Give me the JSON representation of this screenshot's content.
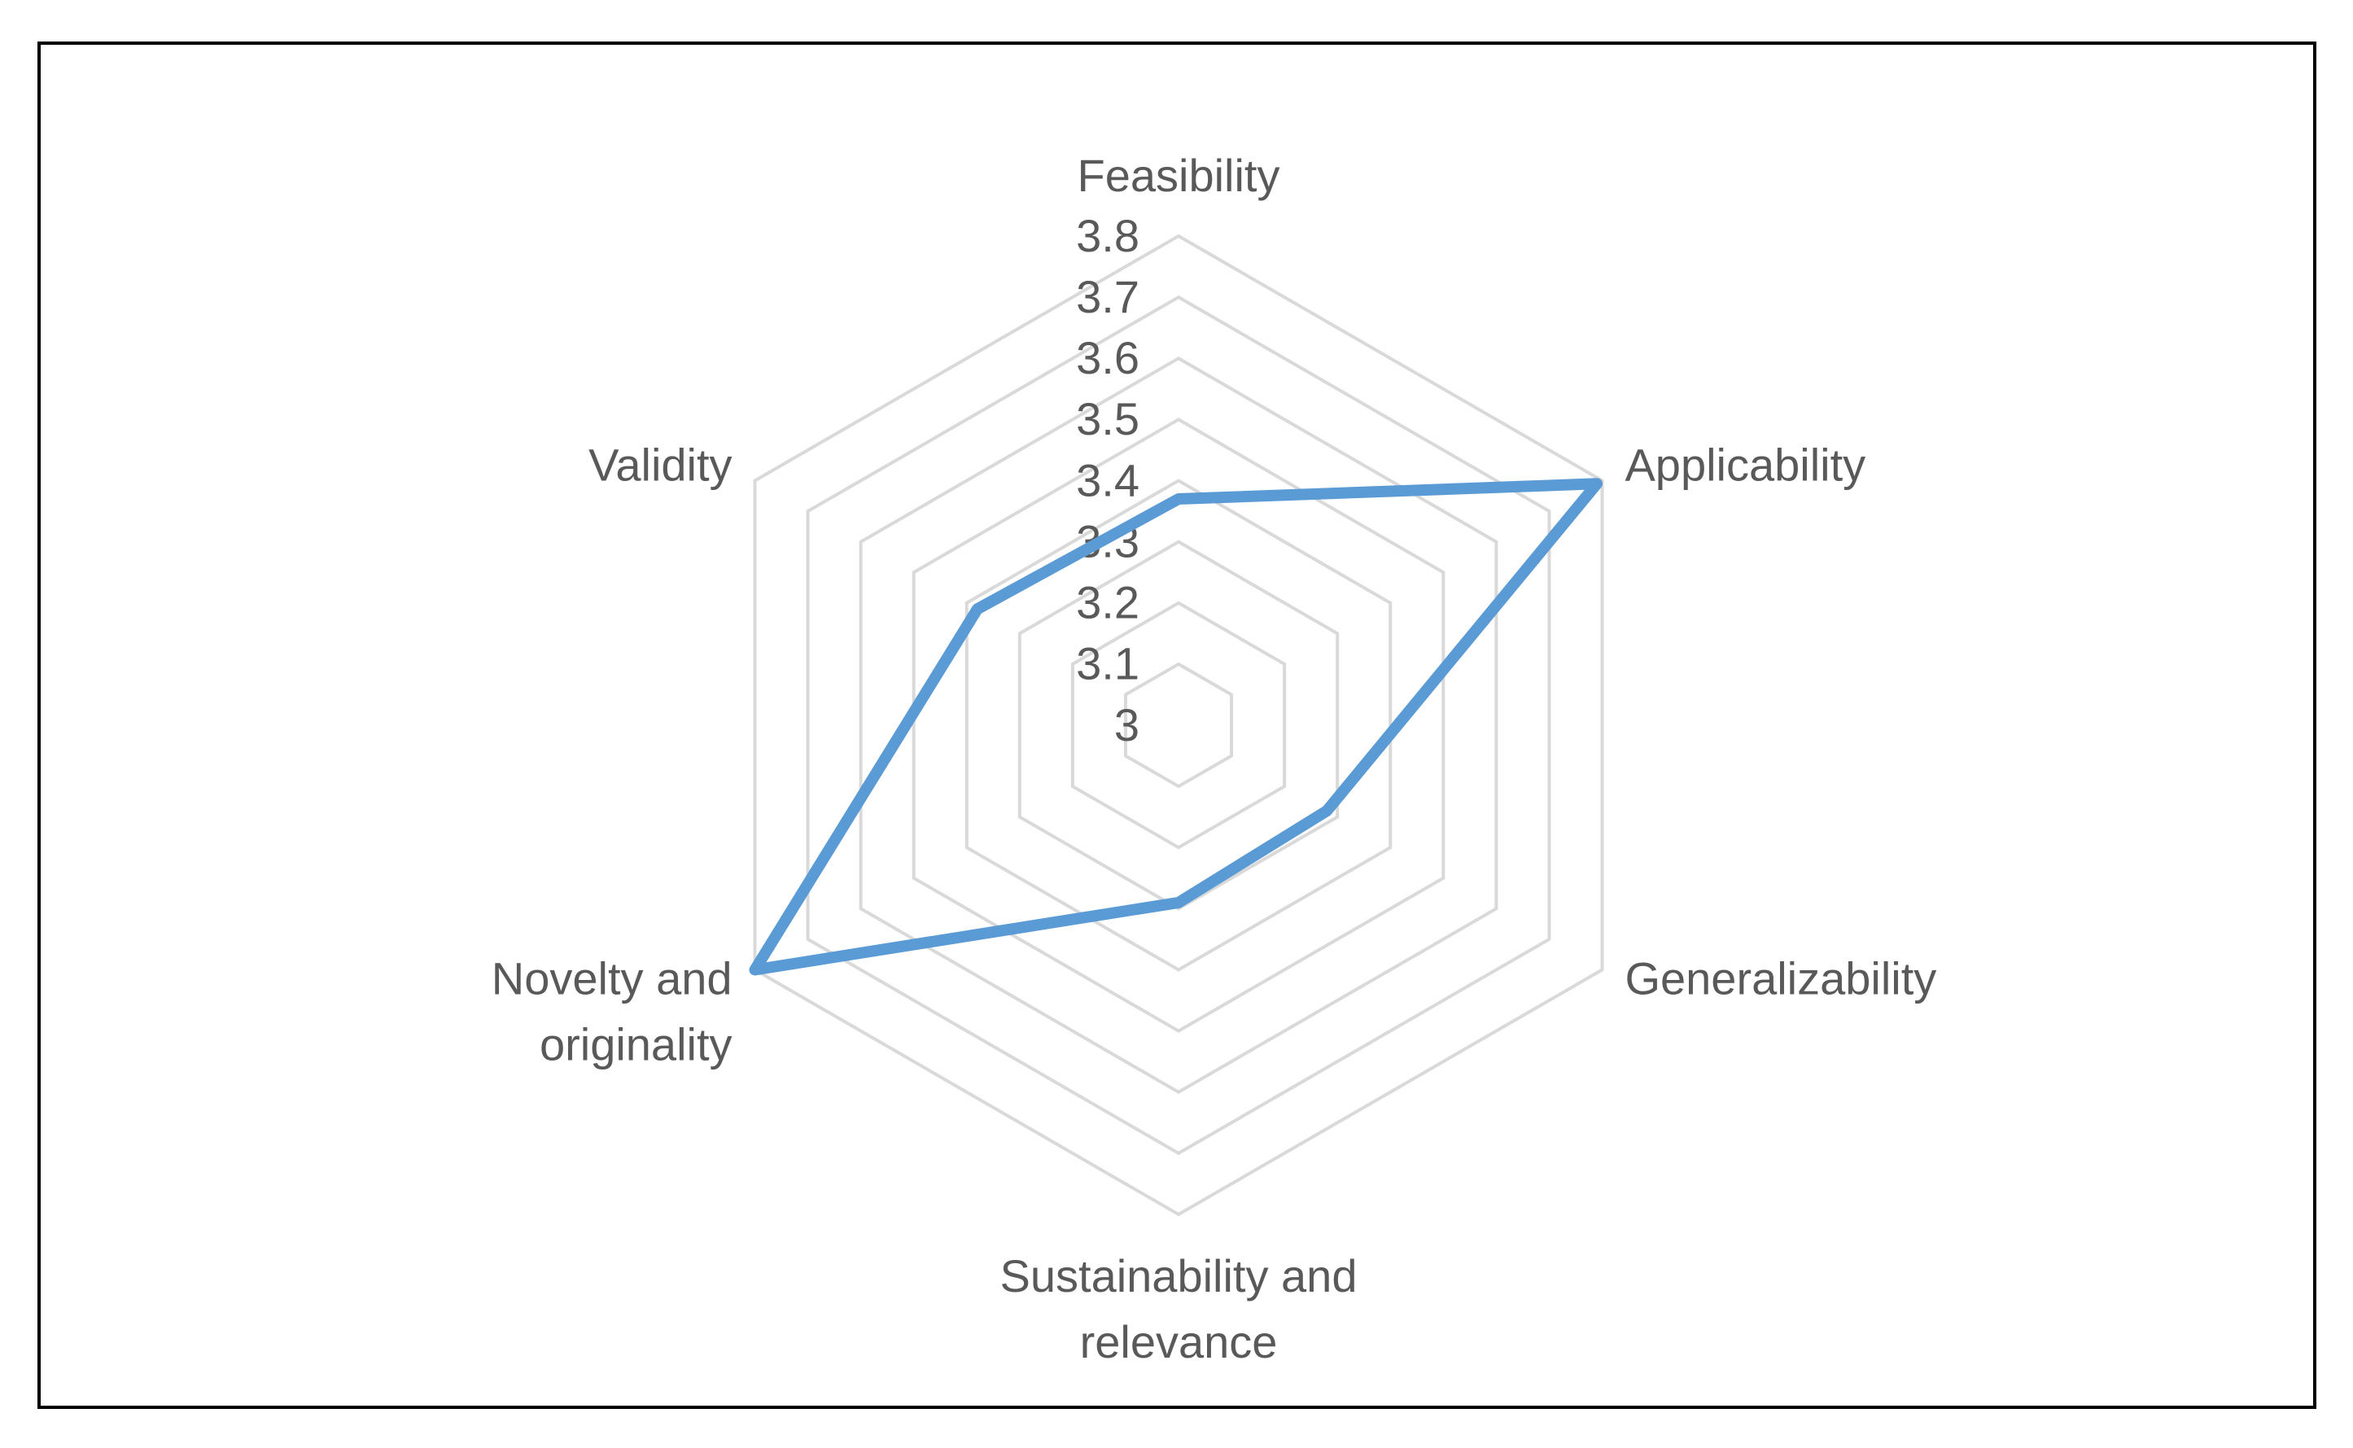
{
  "chart_data": {
    "type": "radar",
    "categories": [
      "Feasibility",
      "Applicability",
      "Generalizability",
      "Sustainability and relevance",
      "Novelty and originality",
      "Validity"
    ],
    "values": [
      3.37,
      3.79,
      3.28,
      3.29,
      3.8,
      3.38
    ],
    "color": "#5b9bd5",
    "ylim": [
      3,
      3.8
    ],
    "yticks": [
      3,
      3.1,
      3.2,
      3.3,
      3.4,
      3.5,
      3.6,
      3.7,
      3.8
    ],
    "grid": true
  }
}
